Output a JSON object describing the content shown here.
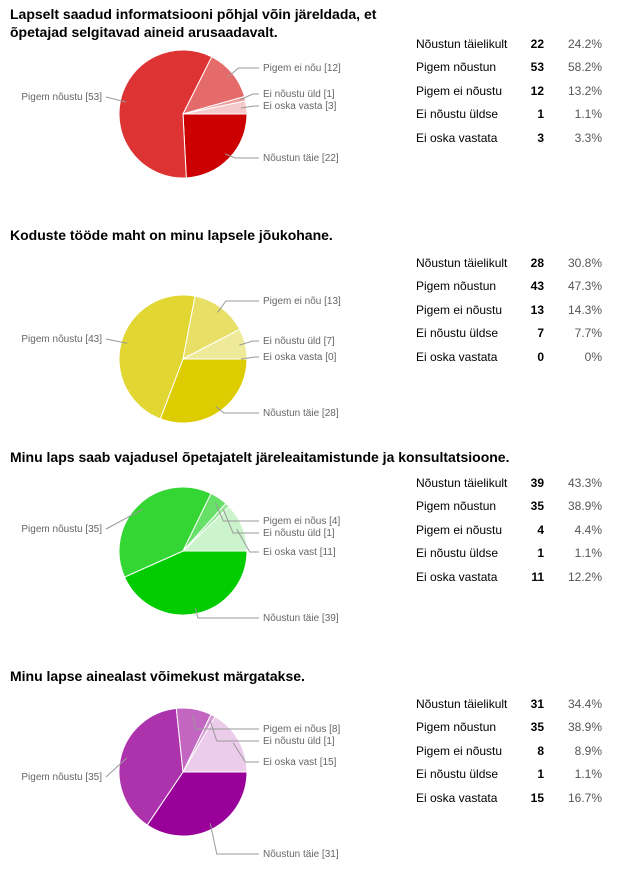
{
  "chart_data": [
    {
      "type": "pie",
      "title": "Lapselt saadud informatsiooni põhjal võin järeldada, et õpetajad selgitavad aineid arusaadavalt.",
      "categories": [
        "Nõustun täielikult",
        "Pigem nõustun",
        "Pigem ei nõustu",
        "Ei nõustu üldse",
        "Ei oska vastata"
      ],
      "values": [
        22,
        53,
        12,
        1,
        3
      ],
      "percents": [
        "24.2%",
        "58.2%",
        "13.2%",
        "1.1%",
        "3.3%"
      ],
      "pie_labels": [
        "Nõustun täie [22]",
        "Pigem nõustu [53]",
        "Pigem ei nõu [12]",
        "Ei nõustu üld [1]",
        "Ei oska vasta [3]"
      ],
      "colors": [
        "#cc0000",
        "#dd3333",
        "#e56b6b",
        "#ee9c9c",
        "#f5caca"
      ]
    },
    {
      "type": "pie",
      "title": "Koduste tööde maht on minu lapsele jõukohane.",
      "categories": [
        "Nõustun täielikult",
        "Pigem nõustun",
        "Pigem ei nõustu",
        "Ei nõustu üldse",
        "Ei oska vastata"
      ],
      "values": [
        28,
        43,
        13,
        7,
        0
      ],
      "percents": [
        "30.8%",
        "47.3%",
        "14.3%",
        "7.7%",
        "0%"
      ],
      "pie_labels": [
        "Nõustun täie [28]",
        "Pigem nõustu [43]",
        "Pigem ei nõu [13]",
        "Ei nõustu üld [7]",
        "Ei oska vasta [0]"
      ],
      "colors": [
        "#ddcc00",
        "#e2d633",
        "#e8e066",
        "#eeea99",
        "#f4f2c8"
      ]
    },
    {
      "type": "pie",
      "title": "Minu laps saab vajadusel õpetajatelt järeleaitamistunde ja konsultatsioone.",
      "categories": [
        "Nõustun täielikult",
        "Pigem nõustun",
        "Pigem ei nõustu",
        "Ei nõustu üldse",
        "Ei oska vastata"
      ],
      "values": [
        39,
        35,
        4,
        1,
        11
      ],
      "percents": [
        "43.3%",
        "38.9%",
        "4.4%",
        "1.1%",
        "12.2%"
      ],
      "pie_labels": [
        "Nõustun täie [39]",
        "Pigem nõustu [35]",
        "Pigem ei nõus [4]",
        "Ei nõustu üld [1]",
        "Ei oska vast [11]"
      ],
      "colors": [
        "#00cc00",
        "#33d633",
        "#66e066",
        "#99ea99",
        "#ccf4cc"
      ]
    },
    {
      "type": "pie",
      "title": "Minu lapse ainealast võimekust märgatakse.",
      "categories": [
        "Nõustun täielikult",
        "Pigem nõustun",
        "Pigem ei nõustu",
        "Ei nõustu üldse",
        "Ei oska vastata"
      ],
      "values": [
        31,
        35,
        8,
        1,
        15
      ],
      "percents": [
        "34.4%",
        "38.9%",
        "8.9%",
        "1.1%",
        "16.7%"
      ],
      "pie_labels": [
        "Nõustun täie [31]",
        "Pigem nõustu [35]",
        "Pigem ei nõus [8]",
        "Ei nõustu üld [1]",
        "Ei oska vast [15]"
      ],
      "colors": [
        "#990099",
        "#ad33ad",
        "#c266c2",
        "#d699d6",
        "#ebcceb"
      ]
    }
  ]
}
